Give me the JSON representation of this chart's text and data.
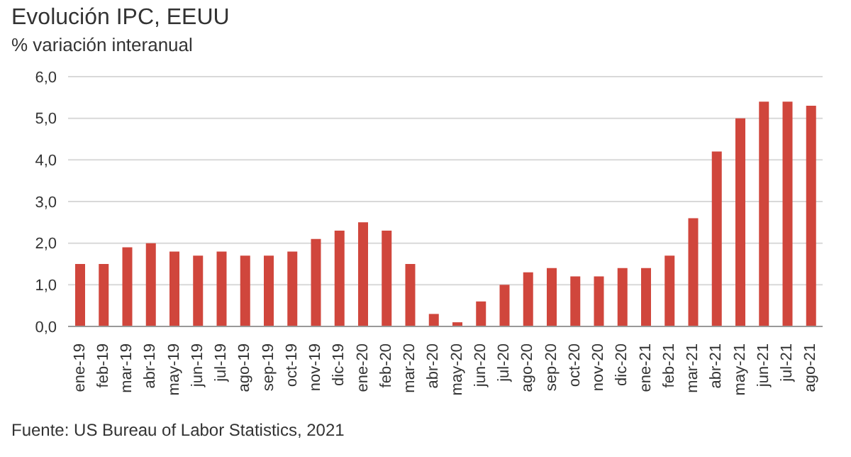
{
  "chart_data": {
    "type": "bar",
    "title": "Evolución IPC, EEUU",
    "subtitle": "% variación interanual",
    "categories": [
      "ene-19",
      "feb-19",
      "mar-19",
      "abr-19",
      "may-19",
      "jun-19",
      "jul-19",
      "ago-19",
      "sep-19",
      "oct-19",
      "nov-19",
      "dic-19",
      "ene-20",
      "feb-20",
      "mar-20",
      "abr-20",
      "may-20",
      "jun-20",
      "jul-20",
      "ago-20",
      "sep-20",
      "oct-20",
      "nov-20",
      "dic-20",
      "ene-21",
      "feb-21",
      "mar-21",
      "abr-21",
      "may-21",
      "jun-21",
      "jul-21",
      "ago-21"
    ],
    "values": [
      1.5,
      1.5,
      1.9,
      2.0,
      1.8,
      1.7,
      1.8,
      1.7,
      1.7,
      1.8,
      2.1,
      2.3,
      2.5,
      2.3,
      1.5,
      0.3,
      0.1,
      0.6,
      1.0,
      1.3,
      1.4,
      1.2,
      1.2,
      1.4,
      1.4,
      1.7,
      2.6,
      4.2,
      5.0,
      5.4,
      5.4,
      5.3
    ],
    "color": "#d0463c",
    "ylim": [
      0,
      6
    ],
    "yticks": [
      {
        "value": 0,
        "label": "0,0"
      },
      {
        "value": 1,
        "label": "1,0"
      },
      {
        "value": 2,
        "label": "2,0"
      },
      {
        "value": 3,
        "label": "3,0"
      },
      {
        "value": 4,
        "label": "4,0"
      },
      {
        "value": 5,
        "label": "5,0"
      },
      {
        "value": 6,
        "label": "6,0"
      }
    ],
    "grid": "y",
    "annotations": [
      "Fuente: US Bureau of Labor Statistics, 2021"
    ]
  }
}
